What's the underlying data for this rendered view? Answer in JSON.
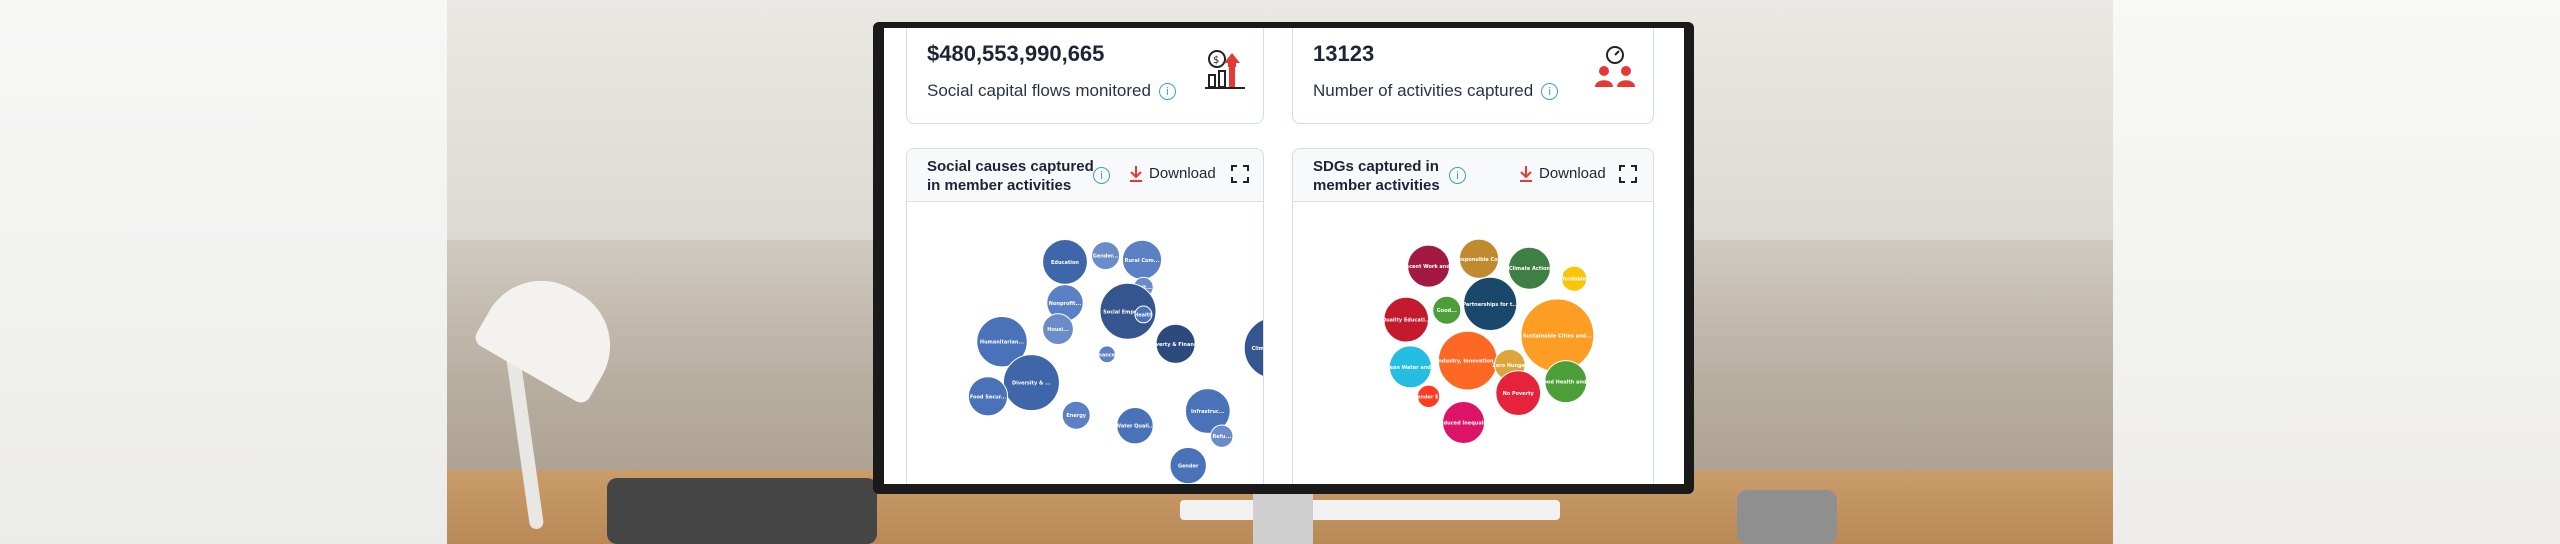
{
  "stats": [
    {
      "value": "$480,553,990,665",
      "label": "Social capital flows monitored",
      "icon": "money-growth-icon"
    },
    {
      "value": "13123",
      "label": "Number of activities captured",
      "icon": "people-gauge-icon"
    }
  ],
  "charts": [
    {
      "title": "Social causes captured in member activities",
      "download_label": "Download",
      "bubbles": [
        {
          "label": "Education",
          "color": "#3f66a8"
        },
        {
          "label": "Gender...",
          "color": "#6b8bc9"
        },
        {
          "label": "Rural Com...",
          "color": "#5b80c4"
        },
        {
          "label": "Cult...",
          "color": "#6b8bc9"
        },
        {
          "label": "Nonprofit...",
          "color": "#5b80c4"
        },
        {
          "label": "Social Empower...",
          "color": "#35558f"
        },
        {
          "label": "Health",
          "color": "#4a72b8"
        },
        {
          "label": "Humanitarian...",
          "color": "#4a72b8"
        },
        {
          "label": "Housi...",
          "color": "#6b8bc9"
        },
        {
          "label": "Finance...",
          "color": "#5b80c4"
        },
        {
          "label": "Poverty & Financ...",
          "color": "#2c4a7c"
        },
        {
          "label": "Climate Action...",
          "color": "#35558f"
        },
        {
          "label": "Diversity & ...",
          "color": "#3f66a8"
        },
        {
          "label": "Food Secur...",
          "color": "#4a72b8"
        },
        {
          "label": "Energy",
          "color": "#5b80c4"
        },
        {
          "label": "Water Quali...",
          "color": "#4a72b8"
        },
        {
          "label": "Infrastruc...",
          "color": "#4a72b8"
        },
        {
          "label": "Refu...",
          "color": "#6b8bc9"
        },
        {
          "label": "Gender",
          "color": "#4a72b8"
        }
      ]
    },
    {
      "title": "SDGs captured in member activities",
      "download_label": "Download",
      "bubbles": [
        {
          "label": "Decent Work and...",
          "color": "#a21942"
        },
        {
          "label": "Responsible Co...",
          "color": "#bf8b2e"
        },
        {
          "label": "Climate Action",
          "color": "#3f7e44"
        },
        {
          "label": "Affordable...",
          "color": "#fcc30b"
        },
        {
          "label": "Quality Educati...",
          "color": "#c5192d"
        },
        {
          "label": "Good...",
          "color": "#4c9f38"
        },
        {
          "label": "Partnerships for t...",
          "color": "#19486a"
        },
        {
          "label": "Sustainable Cities and...",
          "color": "#fd9d24"
        },
        {
          "label": "Clean Water and...",
          "color": "#26bde2"
        },
        {
          "label": "Industry, Innovation...",
          "color": "#fd6925"
        },
        {
          "label": "Zero Hunger",
          "color": "#dda63a"
        },
        {
          "label": "Gender E...",
          "color": "#ff3a21"
        },
        {
          "label": "No Poverty",
          "color": "#e5243b"
        },
        {
          "label": "Good Health and...",
          "color": "#4c9f38"
        },
        {
          "label": "Reduced Inequali...",
          "color": "#dd1367"
        }
      ]
    }
  ]
}
